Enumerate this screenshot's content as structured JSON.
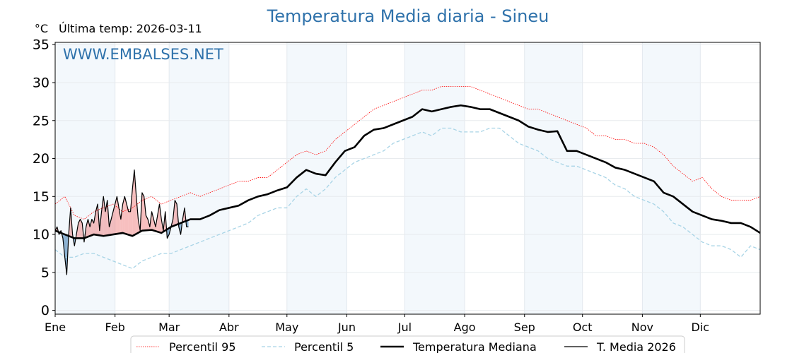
{
  "chart_data": {
    "type": "line",
    "title": "Temperatura Media diaria - Sineu",
    "ylabel": "°C",
    "subtitle": "Última temp: 2026-03-11",
    "watermark": "WWW.EMBALSES.NET",
    "ylim": [
      -0.5,
      35.3
    ],
    "xlim": [
      0,
      365
    ],
    "yticks": [
      0,
      5,
      10,
      15,
      20,
      25,
      30,
      35
    ],
    "months": [
      {
        "label": "Ene",
        "day": 0
      },
      {
        "label": "Feb",
        "day": 31
      },
      {
        "label": "Mar",
        "day": 59
      },
      {
        "label": "Abr",
        "day": 90
      },
      {
        "label": "May",
        "day": 120
      },
      {
        "label": "Jun",
        "day": 151
      },
      {
        "label": "Jul",
        "day": 181
      },
      {
        "label": "Ago",
        "day": 212
      },
      {
        "label": "Sep",
        "day": 243
      },
      {
        "label": "Oct",
        "day": 273
      },
      {
        "label": "Nov",
        "day": 304
      },
      {
        "label": "Dic",
        "day": 334
      }
    ],
    "x_step_days": 5,
    "series": [
      {
        "name": "Percentil 95",
        "color": "#ff0000",
        "style": "dotted",
        "values": [
          14,
          15,
          12.5,
          12,
          13,
          13.5,
          14,
          13,
          13.5,
          14.5,
          15,
          14,
          14.5,
          15,
          15.5,
          15,
          15.5,
          16,
          16.5,
          17,
          17,
          17.5,
          17.5,
          18.5,
          19.5,
          20.5,
          21,
          20.5,
          21,
          22.5,
          23.5,
          24.5,
          25.5,
          26.5,
          27,
          27.5,
          28,
          28.5,
          29,
          29,
          29.5,
          29.5,
          29.5,
          29.5,
          29,
          28.5,
          28,
          27.5,
          27,
          26.5,
          26.5,
          26,
          25.5,
          25,
          24.5,
          24,
          23,
          23,
          22.5,
          22.5,
          22,
          22,
          21.5,
          20.5,
          19,
          18,
          17,
          17.5,
          16,
          15,
          14.5,
          14.5,
          14.5,
          15
        ]
      },
      {
        "name": "Percentil 5",
        "color": "#a8d4e6",
        "style": "dashed",
        "values": [
          8,
          7,
          7,
          7.5,
          7.5,
          7,
          6.5,
          6,
          5.5,
          6.5,
          7,
          7.5,
          7.5,
          8,
          8.5,
          9,
          9.5,
          10,
          10.5,
          11,
          11.5,
          12.5,
          13,
          13.5,
          13.5,
          15,
          16,
          15,
          16,
          17.5,
          18.5,
          19.5,
          20,
          20.5,
          21,
          22,
          22.5,
          23,
          23.5,
          23,
          24,
          24,
          23.5,
          23.5,
          23.5,
          24,
          24,
          23,
          22,
          21.5,
          21,
          20,
          19.5,
          19,
          19,
          18.5,
          18,
          17.5,
          16.5,
          16,
          15,
          14.5,
          14,
          13,
          11.5,
          11,
          10,
          9,
          8.5,
          8.5,
          8,
          7,
          8.5,
          8
        ]
      },
      {
        "name": "Temperatura Mediana",
        "color": "#000000",
        "style": "thick",
        "values": [
          10.5,
          10,
          9.5,
          9.5,
          10,
          9.8,
          10,
          10.2,
          9.8,
          10.5,
          10.6,
          10.2,
          11,
          11.5,
          12,
          12,
          12.5,
          13.2,
          13.5,
          13.8,
          14.5,
          15,
          15.3,
          15.8,
          16.2,
          17.5,
          18.5,
          18,
          17.8,
          19.5,
          21,
          21.5,
          23,
          23.8,
          24,
          24.5,
          25,
          25.5,
          26.5,
          26.2,
          26.5,
          26.8,
          27,
          26.8,
          26.5,
          26.5,
          26,
          25.5,
          25,
          24.2,
          23.8,
          23.5,
          23.6,
          21,
          21,
          20.5,
          20,
          19.5,
          18.8,
          18.5,
          18,
          17.5,
          17,
          15.5,
          15,
          14,
          13,
          12.5,
          12,
          11.8,
          11.5,
          11.5,
          11,
          10.2
        ]
      },
      {
        "name": "T. Media 2026",
        "color": "#000000",
        "style": "thin",
        "x_step_days": 1,
        "values": [
          10.5,
          11,
          10,
          10.5,
          9.5,
          7,
          4.7,
          10,
          13.5,
          10,
          8.5,
          10,
          11.5,
          12,
          11.5,
          9,
          11,
          12,
          11,
          12,
          11.5,
          13,
          14,
          10.5,
          13,
          15,
          13,
          14.5,
          11,
          12,
          13,
          14,
          15,
          13.5,
          12,
          14,
          15,
          14,
          13,
          13,
          16,
          18.5,
          15,
          12,
          10.5,
          15.5,
          15,
          12.5,
          12,
          11,
          13,
          12,
          11,
          12.5,
          14,
          12,
          10.5,
          13,
          9.5,
          10,
          11,
          12,
          14.5,
          14,
          11,
          10,
          12,
          13.5,
          11,
          11
        ]
      }
    ],
    "fill_above_color": "#f08080",
    "fill_below_color": "#4682b4",
    "legend_position": "bottom-center",
    "grid": true
  }
}
